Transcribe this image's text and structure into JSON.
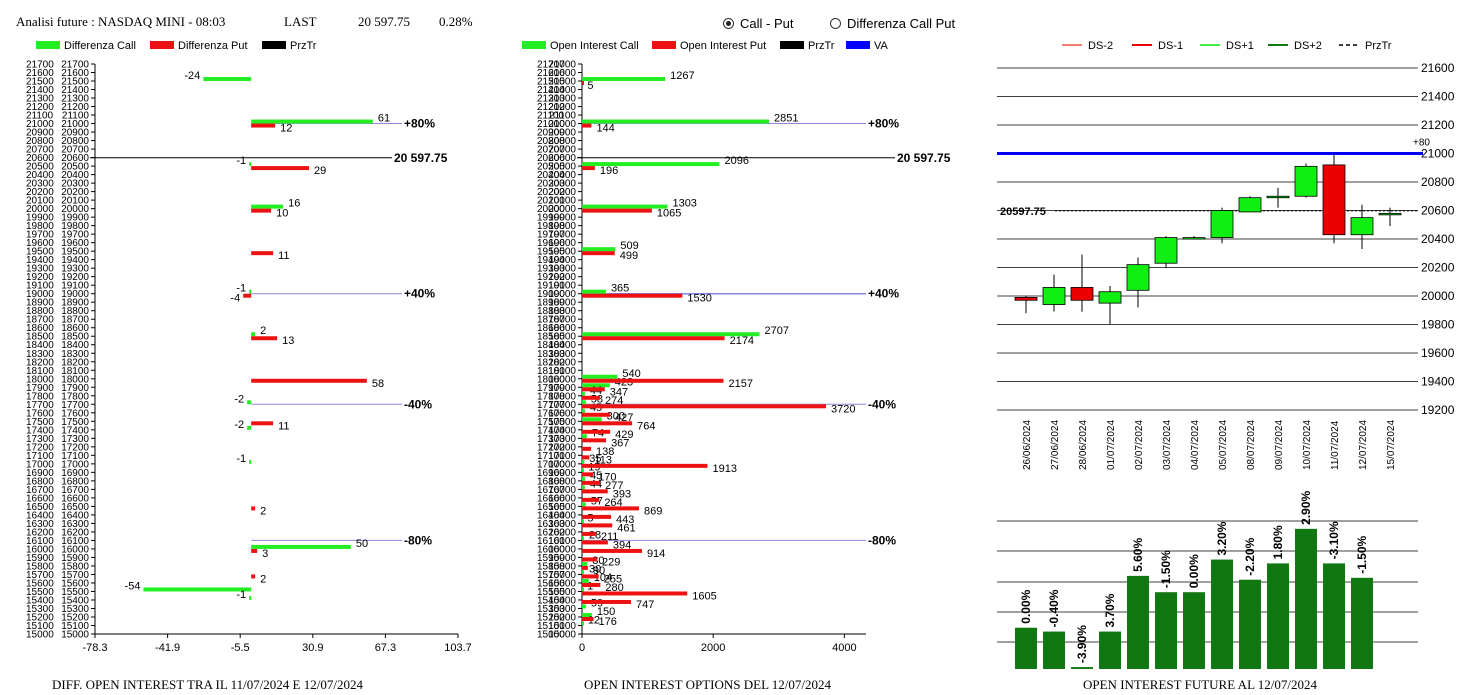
{
  "header": {
    "title": "Analisi future : NASDAQ MINI - 08:03",
    "last_label": "LAST",
    "last_value": "20 597.75",
    "change_pct": "0.28%"
  },
  "mode_selector": {
    "options": [
      "Call - Put",
      "Differenza Call Put"
    ],
    "selected": "Call - Put"
  },
  "colors": {
    "call": "#22ee22",
    "put": "#ee1111",
    "price": "#000000",
    "va": "#0000ff",
    "level_line": "#8888dd",
    "candle_up": "#11ee11",
    "candle_down": "#ee0000",
    "oi_bar": "#117711"
  },
  "chart_data": [
    {
      "id": "diff-oi",
      "type": "bar",
      "orientation": "horizontal",
      "title": "DIFF. OPEN INTEREST TRA IL 11/07/2024 E 12/07/2024",
      "legend": [
        "Differenza Call",
        "Differenza Put",
        "PrzTr"
      ],
      "y_ticks": [
        21700,
        21600,
        21500,
        21400,
        21300,
        21200,
        21100,
        21000,
        20900,
        20800,
        20700,
        20600,
        20500,
        20400,
        20300,
        20200,
        20100,
        20000,
        19900,
        19800,
        19700,
        19600,
        19500,
        19400,
        19300,
        19200,
        19100,
        19000,
        18900,
        18800,
        18700,
        18600,
        18500,
        18400,
        18300,
        18200,
        18100,
        18000,
        17900,
        17800,
        17700,
        17600,
        17500,
        17400,
        17300,
        17200,
        17100,
        17000,
        16900,
        16800,
        16700,
        16600,
        16500,
        16400,
        16300,
        16200,
        16100,
        16000,
        15900,
        15800,
        15700,
        15600,
        15500,
        15400,
        15300,
        15200,
        15100,
        15000
      ],
      "x_ticks": [
        "-78.3",
        "-41.9",
        "-5.5",
        "30.9",
        "67.3",
        "103.7"
      ],
      "x_range": [
        -78.3,
        103.7
      ],
      "y_range": [
        15000,
        21700
      ],
      "call_series": [
        [
          21500,
          -24
        ],
        [
          21000,
          61
        ],
        [
          20500,
          -1
        ],
        [
          20000,
          16
        ],
        [
          19000,
          -1
        ],
        [
          18500,
          2
        ],
        [
          17700,
          -2
        ],
        [
          17400,
          -2
        ],
        [
          17000,
          -1
        ],
        [
          16000,
          50
        ],
        [
          15500,
          -54
        ],
        [
          15400,
          -1
        ]
      ],
      "put_series": [
        [
          21000,
          12
        ],
        [
          20500,
          29
        ],
        [
          20000,
          10
        ],
        [
          19500,
          11
        ],
        [
          19000,
          -4
        ],
        [
          18500,
          13
        ],
        [
          18000,
          58
        ],
        [
          17500,
          11
        ],
        [
          16500,
          2
        ],
        [
          16000,
          3
        ],
        [
          15700,
          2
        ]
      ],
      "levels": [
        {
          "price": 21000,
          "label": "+80%"
        },
        {
          "price": 19000,
          "label": "+40%"
        },
        {
          "price": 17700,
          "label": "-40%"
        },
        {
          "price": 16100,
          "label": "-80%"
        }
      ],
      "price_line": {
        "price": 20597.75,
        "label": "20 597.75"
      }
    },
    {
      "id": "oi-options",
      "type": "bar",
      "orientation": "horizontal",
      "title": "OPEN INTEREST OPTIONS DEL 12/07/2024",
      "legend": [
        "Open Interest Call",
        "Open Interest Put",
        "PrzTr",
        "VA"
      ],
      "y_ticks": [
        21700,
        21600,
        21500,
        21400,
        21300,
        21200,
        21100,
        21000,
        20900,
        20800,
        20700,
        20600,
        20500,
        20400,
        20300,
        20200,
        20100,
        20000,
        19900,
        19800,
        19700,
        19600,
        19500,
        19400,
        19300,
        19200,
        19100,
        19000,
        18900,
        18800,
        18700,
        18600,
        18500,
        18400,
        18300,
        18200,
        18100,
        18000,
        17900,
        17800,
        17700,
        17600,
        17500,
        17400,
        17300,
        17200,
        17100,
        17000,
        16900,
        16800,
        16700,
        16600,
        16500,
        16400,
        16300,
        16200,
        16100,
        16000,
        15900,
        15800,
        15700,
        15600,
        15500,
        15400,
        15300,
        15200,
        15100,
        15000
      ],
      "x_ticks": [
        "0",
        "2000",
        "4000"
      ],
      "x_range": [
        0,
        4330
      ],
      "y_range": [
        15000,
        21700
      ],
      "call_series": [
        [
          21500,
          1267
        ],
        [
          21000,
          2851
        ],
        [
          20500,
          2096
        ],
        [
          20000,
          1303
        ],
        [
          19500,
          509
        ],
        [
          19000,
          365
        ],
        [
          18500,
          2707
        ],
        [
          18000,
          540
        ],
        [
          17900,
          423
        ],
        [
          17800,
          44
        ],
        [
          17700,
          58
        ],
        [
          17600,
          45
        ],
        [
          17500,
          300
        ],
        [
          17300,
          74
        ],
        [
          17000,
          35
        ],
        [
          16900,
          19
        ],
        [
          16800,
          45
        ],
        [
          16700,
          44
        ],
        [
          16500,
          57
        ],
        [
          16300,
          5
        ],
        [
          16100,
          28
        ],
        [
          15800,
          80
        ],
        [
          15700,
          30
        ],
        [
          15600,
          104
        ],
        [
          15500,
          1
        ],
        [
          15300,
          59
        ],
        [
          15200,
          150
        ],
        [
          15100,
          12
        ]
      ],
      "put_series": [
        [
          21500,
          5
        ],
        [
          21000,
          144
        ],
        [
          20500,
          196
        ],
        [
          20000,
          1065
        ],
        [
          19500,
          499
        ],
        [
          19000,
          1530
        ],
        [
          18500,
          2174
        ],
        [
          18000,
          2157
        ],
        [
          17900,
          347
        ],
        [
          17800,
          274
        ],
        [
          17700,
          3720
        ],
        [
          17600,
          427
        ],
        [
          17500,
          764
        ],
        [
          17400,
          429
        ],
        [
          17300,
          367
        ],
        [
          17200,
          138
        ],
        [
          17100,
          113
        ],
        [
          17000,
          1913
        ],
        [
          16900,
          170
        ],
        [
          16800,
          277
        ],
        [
          16700,
          393
        ],
        [
          16600,
          264
        ],
        [
          16500,
          869
        ],
        [
          16400,
          443
        ],
        [
          16300,
          461
        ],
        [
          16200,
          211
        ],
        [
          16100,
          394
        ],
        [
          16000,
          914
        ],
        [
          15900,
          229
        ],
        [
          15800,
          90
        ],
        [
          15700,
          255
        ],
        [
          15600,
          280
        ],
        [
          15500,
          1605
        ],
        [
          15400,
          747
        ],
        [
          15200,
          176
        ]
      ],
      "va_line": {
        "price": 19000
      },
      "levels": [
        {
          "price": 21000,
          "label": "+80%"
        },
        {
          "price": 19000,
          "label": "+40%"
        },
        {
          "price": 17700,
          "label": "-40%"
        },
        {
          "price": 16100,
          "label": "-80%"
        }
      ],
      "price_line": {
        "price": 20597.75,
        "label": "20 597.75"
      }
    },
    {
      "id": "candles",
      "type": "candlestick",
      "legend": [
        "DS-2",
        "DS-1",
        "DS+1",
        "DS+2",
        "PrzTr"
      ],
      "y_ticks": [
        21600,
        21400,
        21200,
        21000,
        20800,
        20600,
        20400,
        20200,
        20000,
        19800,
        19600,
        19400,
        19200
      ],
      "y_range": [
        19200,
        21600
      ],
      "dates": [
        "26/06/2024",
        "27/06/2024",
        "28/06/2024",
        "01/07/2024",
        "02/07/2024",
        "03/07/2024",
        "04/07/2024",
        "05/07/2024",
        "08/07/2024",
        "09/07/2024",
        "10/07/2024",
        "11/07/2024",
        "12/07/2024",
        "15/07/2024"
      ],
      "ohlc": [
        [
          19990,
          20000,
          19880,
          19970
        ],
        [
          19940,
          20150,
          19890,
          20060
        ],
        [
          20060,
          20290,
          19890,
          19970
        ],
        [
          19950,
          20070,
          19800,
          20030
        ],
        [
          20040,
          20270,
          19920,
          20220
        ],
        [
          20230,
          20420,
          20200,
          20410
        ],
        [
          20410,
          20420,
          20400,
          20410
        ],
        [
          20410,
          20620,
          20370,
          20600
        ],
        [
          20590,
          20700,
          20590,
          20690
        ],
        [
          20690,
          20760,
          20620,
          20700
        ],
        [
          20700,
          20930,
          20690,
          20910
        ],
        [
          20920,
          21000,
          20370,
          20430
        ],
        [
          20430,
          20640,
          20330,
          20550
        ],
        [
          20570,
          20620,
          20490,
          20580
        ]
      ],
      "va_line": {
        "price": 21000,
        "label": "+80"
      },
      "price_line": {
        "price": 20597.75,
        "label": "20597.75"
      }
    },
    {
      "id": "oi-future",
      "type": "bar",
      "title": "OPEN INTEREST FUTURE AL 12/07/2024",
      "categories": [
        "26/06/2024",
        "27/06/2024",
        "28/06/2024",
        "01/07/2024",
        "02/07/2024",
        "03/07/2024",
        "04/07/2024",
        "05/07/2024",
        "08/07/2024",
        "09/07/2024",
        "10/07/2024",
        "11/07/2024",
        "12/07/2024"
      ],
      "values": [
        0.0,
        -0.4,
        -3.9,
        3.7,
        5.6,
        -1.5,
        0.0,
        3.2,
        -2.2,
        1.8,
        2.9,
        -3.1,
        -1.5
      ],
      "labels": [
        "0.00%",
        "-0.40%",
        "-3.90%",
        "3.70%",
        "5.60%",
        "-1.50%",
        "0.00%",
        "3.20%",
        "-2.20%",
        "1.80%",
        "2.90%",
        "-3.10%",
        "-1.50%"
      ],
      "bar_heights_relative": [
        0.43,
        0.39,
        0.02,
        0.39,
        0.97,
        0.8,
        0.8,
        1.14,
        0.93,
        1.1,
        1.46,
        1.1,
        0.95
      ]
    }
  ]
}
